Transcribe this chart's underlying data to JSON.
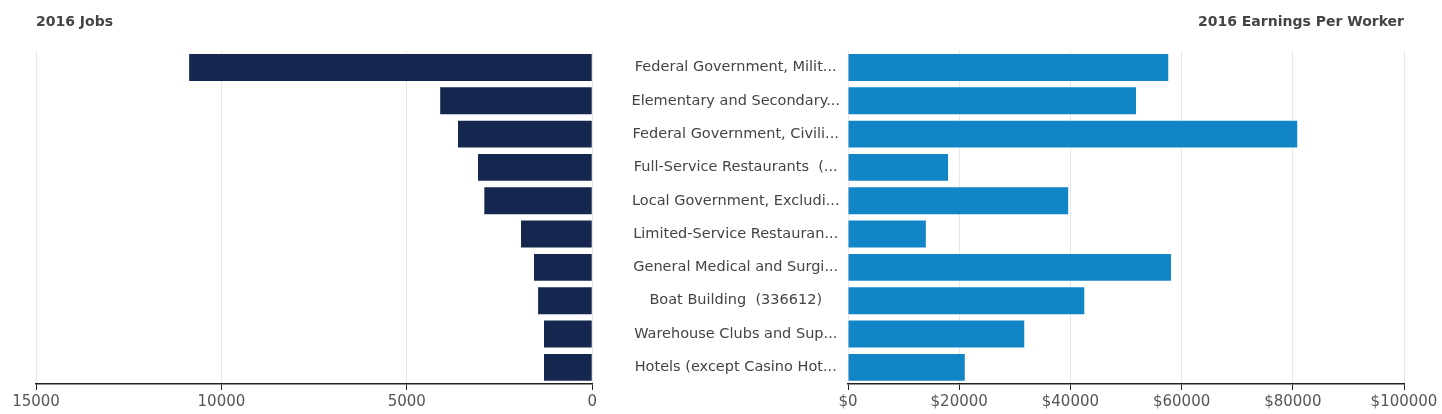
{
  "chart_data": [
    {
      "type": "bar",
      "orientation": "horizontal",
      "title": "2016 Jobs",
      "categories": [
        null,
        null,
        null,
        null,
        null,
        null,
        null,
        null,
        null,
        null
      ],
      "values": [
        10870,
        4100,
        3620,
        3080,
        2910,
        1920,
        1570,
        1460,
        1300,
        1300
      ],
      "color": "#16274f",
      "xlim": [
        15000,
        0
      ],
      "xticks": [
        15000,
        10000,
        5000,
        0
      ],
      "grid": "x",
      "tick_labels": "x"
    },
    {
      "type": "bar",
      "orientation": "horizontal",
      "title": "2016 Earnings Per Worker",
      "categories": [
        "Federal Government, Milit...",
        "Elementary and Secondary...",
        "Federal Government, Civili...",
        "Full-Service Restaurants  (...",
        "Local Government, Excludi...",
        "Limited-Service Restauran...",
        "General Medical and Surgi...",
        "Boat Building  (336612)",
        "Warehouse Clubs and Sup...",
        "Hotels (except Casino Hot..."
      ],
      "values": [
        57600,
        51800,
        80800,
        18000,
        39600,
        14000,
        58100,
        42500,
        31700,
        21000
      ],
      "color": "#1185c6",
      "xlim": [
        0,
        100000
      ],
      "xticks": [
        {
          "value": 0,
          "label": "$0"
        },
        {
          "value": 20000,
          "label": "$20000"
        },
        {
          "value": 40000,
          "label": "$40000"
        },
        {
          "value": 60000,
          "label": "$60000"
        },
        {
          "value": 80000,
          "label": "$80000"
        },
        {
          "value": 100000,
          "label": "$100000"
        }
      ],
      "grid": "x"
    }
  ]
}
